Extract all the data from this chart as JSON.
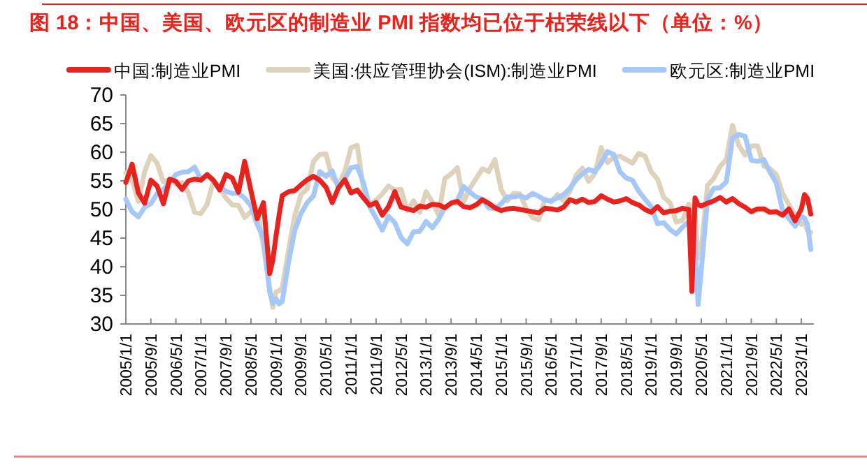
{
  "chart_data": {
    "type": "line",
    "title": "图 18：中国、美国、欧元区的制造业 PMI 指数均已位于枯荣线以下（单位：%）",
    "x": [
      "2005-01",
      "2005-03",
      "2005-05",
      "2005-07",
      "2005-09",
      "2005-11",
      "2006-01",
      "2006-03",
      "2006-05",
      "2006-07",
      "2006-09",
      "2006-11",
      "2007-01",
      "2007-03",
      "2007-05",
      "2007-07",
      "2007-09",
      "2007-11",
      "2008-01",
      "2008-03",
      "2008-05",
      "2008-07",
      "2008-09",
      "2008-11",
      "2008-12",
      "2009-01",
      "2009-02",
      "2009-03",
      "2009-05",
      "2009-07",
      "2009-09",
      "2009-11",
      "2010-01",
      "2010-03",
      "2010-05",
      "2010-07",
      "2010-09",
      "2010-11",
      "2011-01",
      "2011-03",
      "2011-05",
      "2011-07",
      "2011-09",
      "2011-11",
      "2012-01",
      "2012-03",
      "2012-05",
      "2012-07",
      "2012-09",
      "2012-11",
      "2013-01",
      "2013-03",
      "2013-05",
      "2013-07",
      "2013-09",
      "2013-11",
      "2014-01",
      "2014-03",
      "2014-05",
      "2014-07",
      "2014-09",
      "2014-11",
      "2015-01",
      "2015-03",
      "2015-05",
      "2015-07",
      "2015-09",
      "2015-11",
      "2016-01",
      "2016-03",
      "2016-05",
      "2016-07",
      "2016-09",
      "2016-11",
      "2017-01",
      "2017-03",
      "2017-05",
      "2017-07",
      "2017-09",
      "2017-11",
      "2018-01",
      "2018-03",
      "2018-05",
      "2018-07",
      "2018-09",
      "2018-11",
      "2019-01",
      "2019-03",
      "2019-05",
      "2019-07",
      "2019-09",
      "2019-11",
      "2020-01",
      "2020-02",
      "2020-03",
      "2020-04",
      "2020-05",
      "2020-07",
      "2020-09",
      "2020-11",
      "2021-01",
      "2021-03",
      "2021-05",
      "2021-07",
      "2021-09",
      "2021-11",
      "2022-01",
      "2022-03",
      "2022-05",
      "2022-07",
      "2022-09",
      "2022-11",
      "2023-01",
      "2023-02",
      "2023-03",
      "2023-04"
    ],
    "series": [
      {
        "name": "中国:制造业PMI",
        "color": "#e8221c",
        "values": [
          54.7,
          57.9,
          52.9,
          51.1,
          55.1,
          54.1,
          51.0,
          55.3,
          54.9,
          53.5,
          55.0,
          55.3,
          55.1,
          56.1,
          55.1,
          53.4,
          56.1,
          55.5,
          53.0,
          58.4,
          53.3,
          48.4,
          51.2,
          38.8,
          41.2,
          45.3,
          49.0,
          52.4,
          53.1,
          53.3,
          54.3,
          55.2,
          55.8,
          55.1,
          53.9,
          51.2,
          53.8,
          55.2,
          52.9,
          53.4,
          52.0,
          50.7,
          51.2,
          49.0,
          50.5,
          53.1,
          50.4,
          50.1,
          49.8,
          50.6,
          50.4,
          50.9,
          50.8,
          50.3,
          51.1,
          51.4,
          50.5,
          50.3,
          50.8,
          51.7,
          51.1,
          50.3,
          49.8,
          50.1,
          50.2,
          50.0,
          49.8,
          49.6,
          49.4,
          50.2,
          50.1,
          49.9,
          50.4,
          51.7,
          51.3,
          51.8,
          51.2,
          51.4,
          52.4,
          51.8,
          51.3,
          51.5,
          51.9,
          51.2,
          50.8,
          50.0,
          49.5,
          50.5,
          49.4,
          49.7,
          49.8,
          50.2,
          50.0,
          35.7,
          52.0,
          50.8,
          50.6,
          51.1,
          51.5,
          52.1,
          51.3,
          51.9,
          51.0,
          50.4,
          49.6,
          50.1,
          50.1,
          49.5,
          49.6,
          49.0,
          50.1,
          48.0,
          50.1,
          52.6,
          51.9,
          49.2
        ]
      },
      {
        "name": "美国:供应管理协会(ISM):制造业PMI",
        "color": "#ddd3bc",
        "values": [
          56.4,
          55.2,
          51.4,
          56.6,
          59.4,
          58.1,
          54.8,
          55.2,
          54.4,
          54.7,
          52.9,
          49.5,
          49.3,
          50.9,
          55.0,
          53.8,
          52.0,
          50.8,
          50.7,
          48.6,
          49.6,
          50.0,
          43.5,
          36.2,
          32.9,
          35.6,
          35.8,
          36.3,
          42.8,
          48.9,
          52.6,
          53.6,
          58.4,
          59.6,
          59.7,
          55.5,
          54.4,
          56.6,
          60.8,
          61.2,
          53.5,
          50.9,
          51.6,
          52.7,
          54.1,
          53.4,
          53.5,
          49.8,
          51.5,
          49.5,
          53.1,
          51.3,
          49.0,
          55.4,
          56.2,
          57.3,
          51.3,
          53.7,
          55.4,
          57.1,
          56.6,
          58.7,
          53.5,
          51.5,
          52.8,
          52.7,
          50.2,
          48.6,
          48.2,
          51.8,
          51.3,
          52.6,
          51.5,
          53.2,
          56.0,
          57.2,
          54.9,
          56.3,
          60.8,
          58.2,
          59.1,
          59.3,
          58.7,
          58.1,
          59.8,
          59.3,
          56.6,
          55.3,
          52.1,
          51.2,
          47.8,
          48.1,
          50.9,
          50.1,
          49.1,
          41.5,
          43.1,
          54.2,
          55.4,
          57.5,
          58.7,
          64.7,
          61.2,
          59.5,
          61.1,
          61.1,
          57.6,
          57.1,
          56.1,
          52.8,
          50.9,
          49.0,
          47.4,
          47.7,
          46.3,
          46.0
        ]
      },
      {
        "name": "欧元区:制造业PMI",
        "color": "#a6c8f8",
        "values": [
          51.8,
          49.6,
          48.7,
          50.4,
          51.0,
          52.8,
          53.5,
          54.7,
          56.1,
          56.5,
          56.6,
          57.4,
          55.2,
          56.0,
          55.0,
          54.0,
          53.2,
          52.8,
          52.8,
          52.0,
          50.6,
          47.4,
          45.0,
          35.6,
          33.6,
          34.4,
          33.5,
          33.9,
          40.7,
          46.3,
          49.3,
          51.2,
          52.4,
          56.6,
          55.8,
          56.7,
          53.7,
          55.3,
          57.3,
          57.5,
          54.6,
          50.4,
          48.5,
          46.4,
          48.8,
          47.7,
          45.1,
          44.0,
          46.1,
          46.2,
          47.9,
          46.8,
          48.3,
          50.3,
          51.1,
          51.6,
          54.0,
          53.0,
          52.2,
          51.8,
          50.3,
          50.1,
          51.0,
          52.2,
          52.2,
          52.4,
          52.0,
          52.8,
          52.3,
          51.6,
          51.5,
          52.0,
          52.6,
          53.7,
          55.2,
          56.2,
          57.0,
          56.6,
          58.1,
          60.1,
          59.6,
          56.6,
          55.5,
          55.1,
          53.2,
          51.8,
          50.5,
          47.5,
          47.7,
          46.5,
          45.7,
          46.9,
          47.9,
          49.2,
          44.5,
          33.4,
          39.4,
          51.8,
          53.7,
          53.8,
          54.8,
          62.5,
          63.1,
          62.8,
          58.6,
          58.4,
          58.7,
          56.5,
          54.6,
          49.8,
          48.4,
          47.1,
          48.8,
          48.5,
          47.3,
          43.0
        ]
      }
    ],
    "xlim": [
      "2005-01",
      "2023-05"
    ],
    "xticks": [
      {
        "value": "2005-01",
        "label": "2005/1/1"
      },
      {
        "value": "2005-09",
        "label": "2005/9/1"
      },
      {
        "value": "2006-05",
        "label": "2006/5/1"
      },
      {
        "value": "2007-01",
        "label": "2007/1/1"
      },
      {
        "value": "2007-09",
        "label": "2007/9/1"
      },
      {
        "value": "2008-05",
        "label": "2008/5/1"
      },
      {
        "value": "2009-01",
        "label": "2009/1/1"
      },
      {
        "value": "2009-09",
        "label": "2009/9/1"
      },
      {
        "value": "2010-05",
        "label": "2010/5/1"
      },
      {
        "value": "2011-01",
        "label": "2011/1/1"
      },
      {
        "value": "2011-09",
        "label": "2011/9/1"
      },
      {
        "value": "2012-05",
        "label": "2012/5/1"
      },
      {
        "value": "2013-01",
        "label": "2013/1/1"
      },
      {
        "value": "2013-09",
        "label": "2013/9/1"
      },
      {
        "value": "2014-05",
        "label": "2014/5/1"
      },
      {
        "value": "2015-01",
        "label": "2015/1/1"
      },
      {
        "value": "2015-09",
        "label": "2015/9/1"
      },
      {
        "value": "2016-05",
        "label": "2016/5/1"
      },
      {
        "value": "2017-01",
        "label": "2017/1/1"
      },
      {
        "value": "2017-09",
        "label": "2017/9/1"
      },
      {
        "value": "2018-05",
        "label": "2018/5/1"
      },
      {
        "value": "2019-01",
        "label": "2019/1/1"
      },
      {
        "value": "2019-09",
        "label": "2019/9/1"
      },
      {
        "value": "2020-05",
        "label": "2020/5/1"
      },
      {
        "value": "2021-01",
        "label": "2021/1/1"
      },
      {
        "value": "2021-09",
        "label": "2021/9/1"
      },
      {
        "value": "2022-05",
        "label": "2022/5/1"
      },
      {
        "value": "2023-01",
        "label": "2023/1/1"
      }
    ],
    "ylim": [
      30,
      70
    ],
    "yticks": [
      30,
      35,
      40,
      45,
      50,
      55,
      60,
      65,
      70
    ],
    "legend": "top",
    "grid": false,
    "marker": "none",
    "line_style": "solid"
  }
}
